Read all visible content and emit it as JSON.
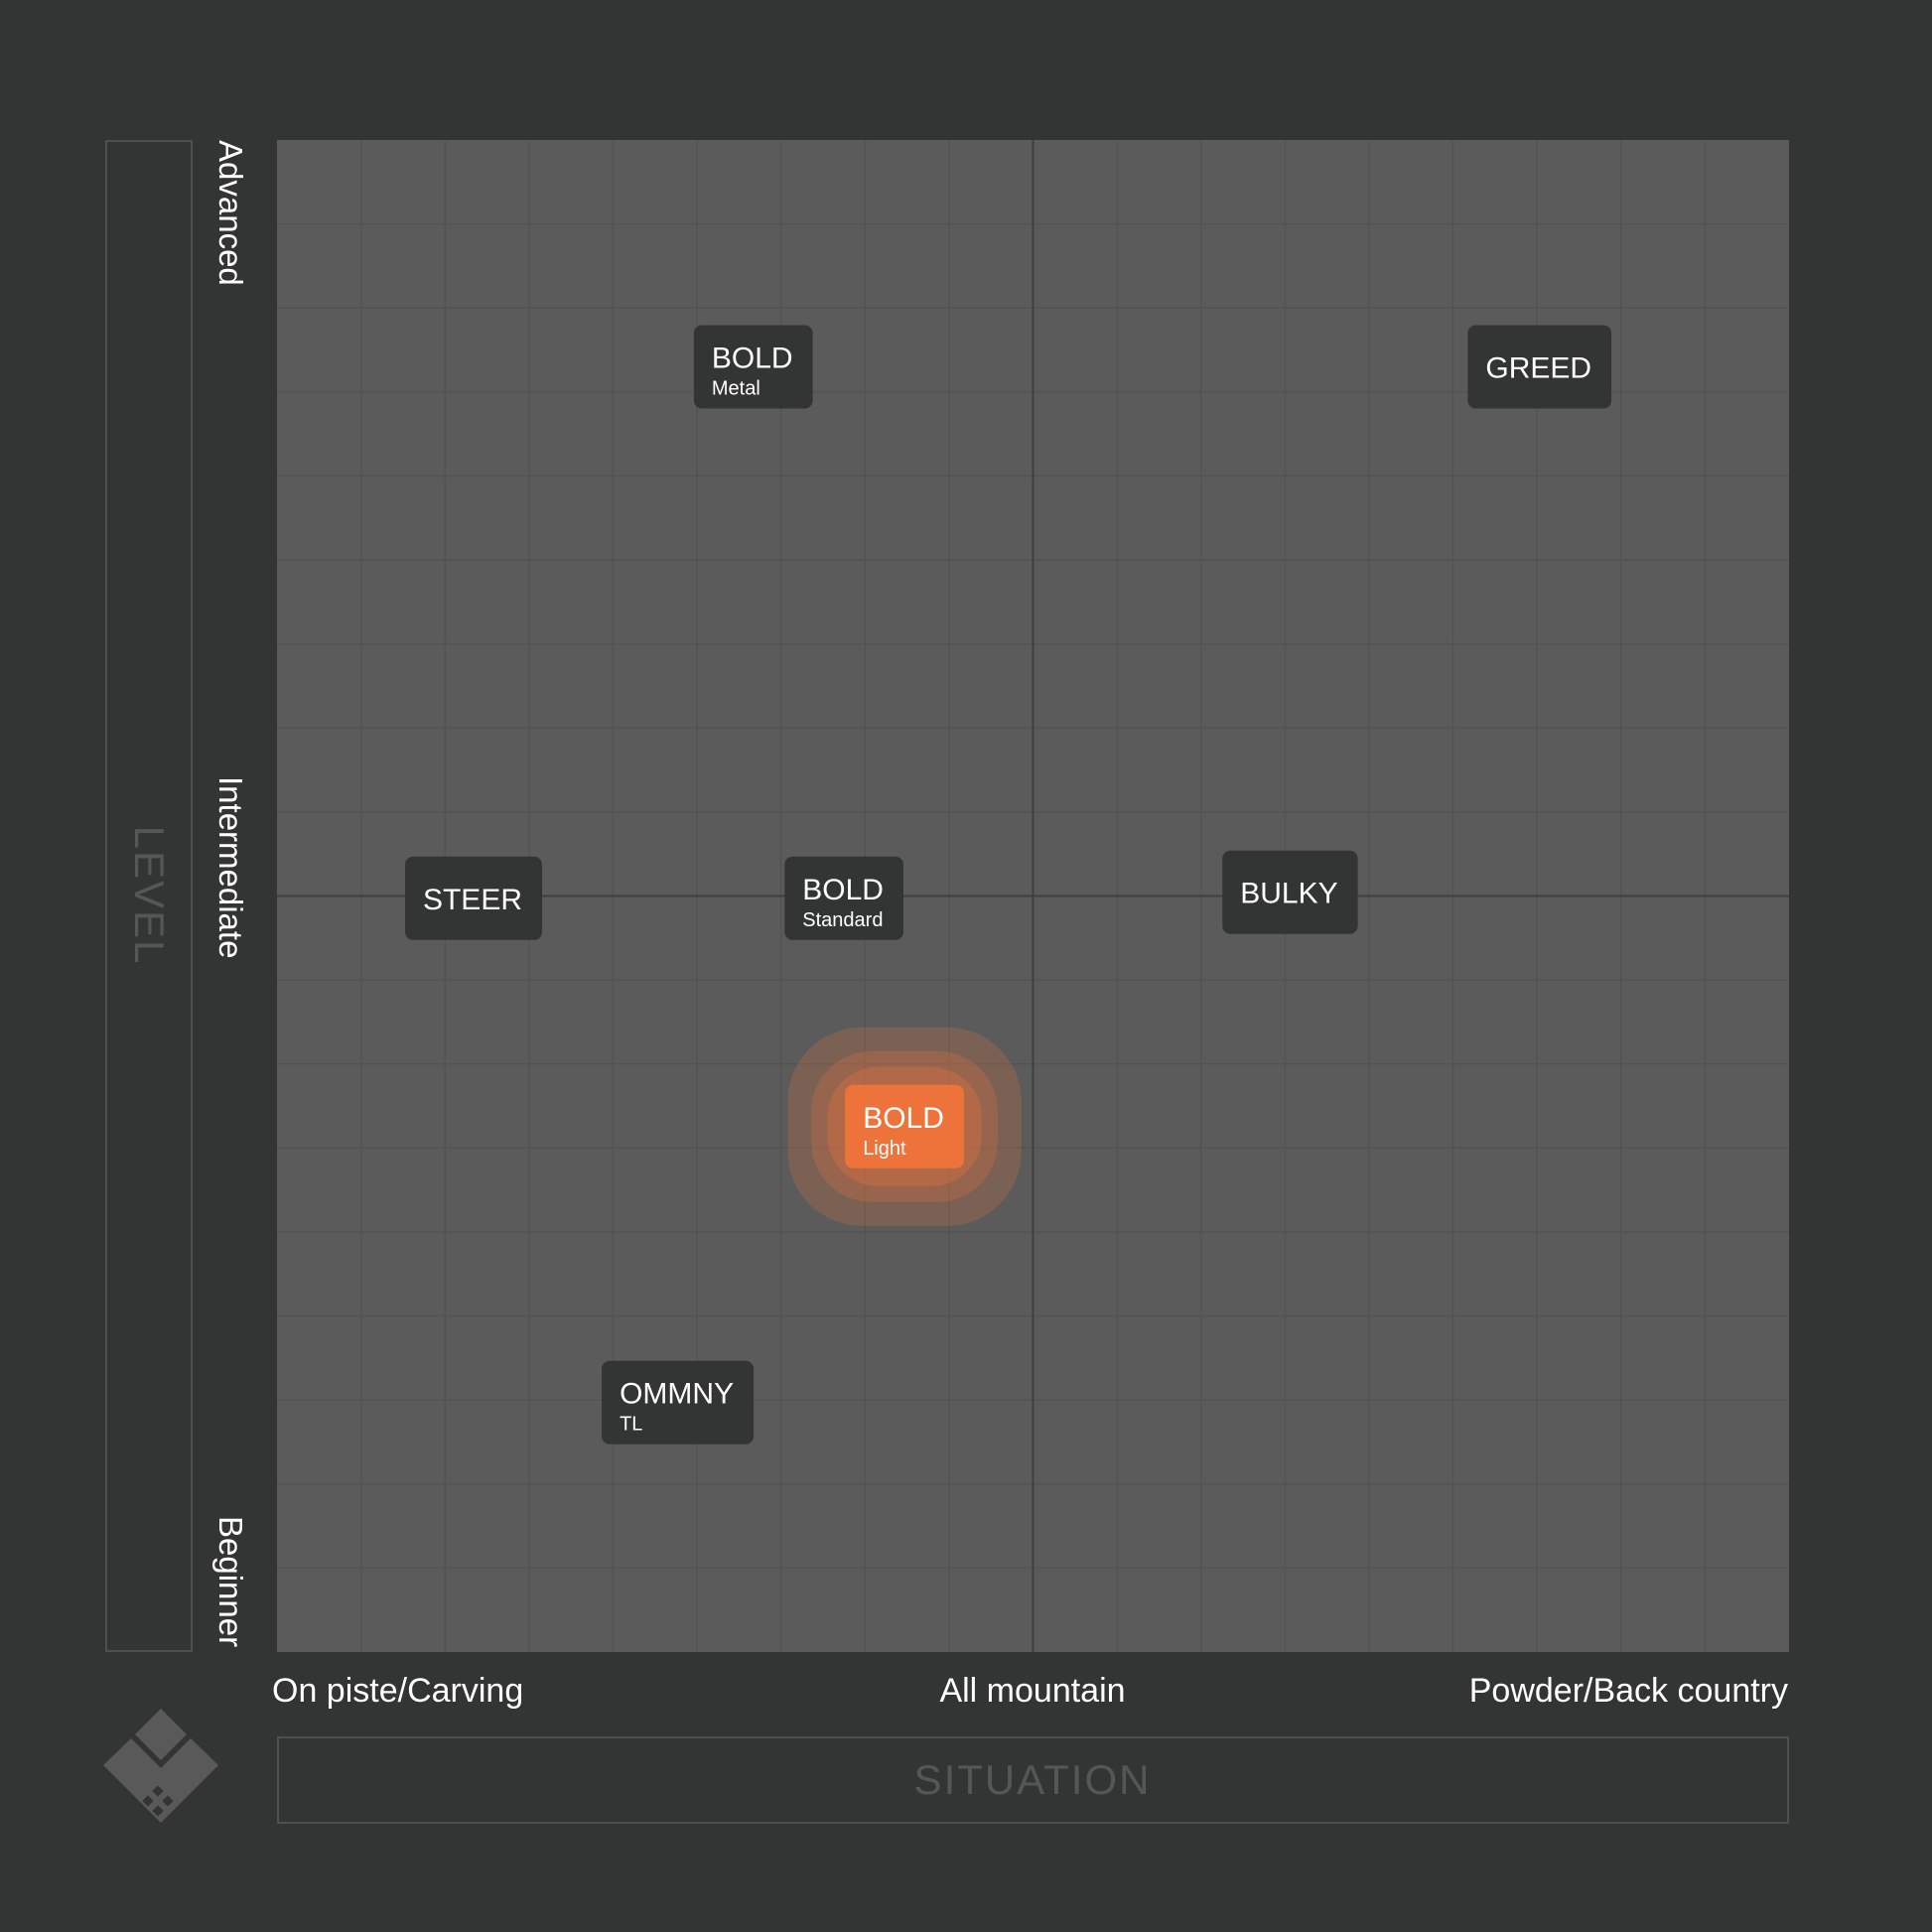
{
  "axes": {
    "y_title": "LEVEL",
    "x_title": "SITUATION",
    "y_ticks": [
      "Advanced",
      "Intermediate",
      "Beginner"
    ],
    "x_ticks": [
      "On piste/Carving",
      "All mountain",
      "Powder/Back country"
    ]
  },
  "colors": {
    "background": "#333534",
    "plot": "#5b5b5b",
    "grid": "#535353",
    "axis_line": "#3f3f3f",
    "box": "#333534",
    "highlight": "#ed733b"
  },
  "chart_data": {
    "type": "scatter",
    "xlim": [
      -1,
      1
    ],
    "ylim": [
      -1,
      1
    ],
    "xlabel": "SITUATION",
    "ylabel": "LEVEL",
    "x_categories": [
      "On piste/Carving",
      "All mountain",
      "Powder/Back country"
    ],
    "y_categories": [
      "Beginner",
      "Intermediate",
      "Advanced"
    ],
    "grid": true,
    "points": [
      {
        "name": "BOLD",
        "sub": "Metal",
        "x": -0.37,
        "y": 0.7,
        "highlight": false
      },
      {
        "name": "GREED",
        "sub": "",
        "x": 0.67,
        "y": 0.7,
        "highlight": false
      },
      {
        "name": "STEER",
        "sub": "",
        "x": -0.74,
        "y": -0.003,
        "highlight": false
      },
      {
        "name": "BOLD",
        "sub": "Standard",
        "x": -0.25,
        "y": -0.003,
        "highlight": false
      },
      {
        "name": "BULKY",
        "sub": "",
        "x": 0.34,
        "y": 0.005,
        "highlight": false
      },
      {
        "name": "BOLD",
        "sub": "Light",
        "x": -0.17,
        "y": -0.305,
        "highlight": true
      },
      {
        "name": "OMMNY",
        "sub": "TL",
        "x": -0.47,
        "y": -0.67,
        "highlight": false
      }
    ]
  }
}
